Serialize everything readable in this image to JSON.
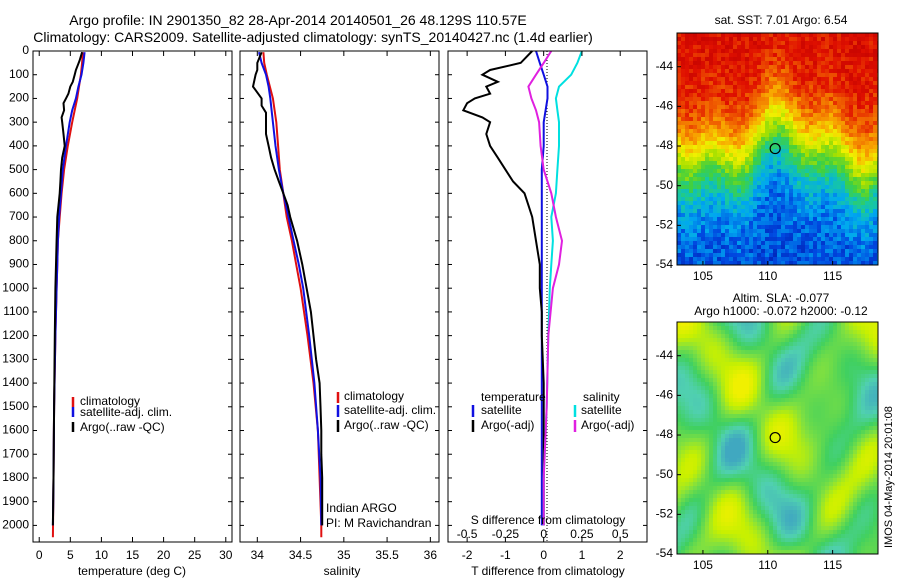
{
  "header": {
    "title_line1": "Argo profile: IN 2901350_82 28-Apr-2014 20140501_26 48.129S 110.57E",
    "title_line2": "Climatology: CARS2009. Satellite-adjusted climatology: synTS_20140427.nc (1.4d earlier)"
  },
  "colors": {
    "climatology": "#e01010",
    "satellite": "#1010e0",
    "argo": "#000000",
    "salinity_satellite": "#00e0e0",
    "salinity_argo": "#e020e0"
  },
  "chart_data": [
    {
      "id": "temperature",
      "type": "line",
      "xlabel": "temperature (deg C)",
      "xlim": [
        -1,
        31
      ],
      "xticks": [
        0,
        5,
        10,
        15,
        20,
        25,
        30
      ],
      "ylim": [
        2070,
        0
      ],
      "yticks": [
        0,
        100,
        200,
        300,
        400,
        500,
        600,
        700,
        800,
        900,
        1000,
        1100,
        1200,
        1300,
        1400,
        1500,
        1600,
        1700,
        1800,
        1900,
        2000
      ],
      "legend": {
        "placement": "lower-center",
        "entries": [
          "climatology",
          "satellite-adj. clim.",
          "Argo(..raw -QC)"
        ]
      },
      "series": [
        {
          "name": "climatology",
          "color": "#e01010",
          "depth": [
            5,
            50,
            100,
            150,
            200,
            250,
            300,
            400,
            500,
            600,
            700,
            800,
            900,
            1000,
            1200,
            1500,
            1800,
            2050
          ],
          "values": [
            7.0,
            6.9,
            6.7,
            6.4,
            6.1,
            5.7,
            5.3,
            4.6,
            4.0,
            3.6,
            3.3,
            3.0,
            2.9,
            2.8,
            2.6,
            2.4,
            2.3,
            2.2
          ]
        },
        {
          "name": "satellite-adj. clim.",
          "color": "#1010e0",
          "depth": [
            5,
            50,
            100,
            150,
            200,
            250,
            300,
            400,
            500,
            600,
            700,
            800,
            900,
            1000,
            1200,
            1500,
            1800,
            2000
          ],
          "values": [
            7.3,
            7.1,
            6.8,
            6.3,
            5.9,
            5.3,
            4.9,
            4.3,
            3.8,
            3.5,
            3.2,
            3.0,
            2.9,
            2.8,
            2.6,
            2.4,
            2.3,
            2.2
          ]
        },
        {
          "name": "Argo(..raw -QC)",
          "color": "#000000",
          "depth": [
            5,
            40,
            60,
            80,
            100,
            130,
            150,
            180,
            200,
            220,
            250,
            280,
            300,
            350,
            400,
            450,
            500,
            550,
            600,
            650,
            700,
            800,
            900,
            1000,
            1200,
            1500,
            1800,
            2000
          ],
          "values": [
            6.9,
            6.5,
            6.2,
            5.9,
            5.7,
            5.4,
            5.0,
            4.7,
            4.3,
            3.9,
            4.0,
            3.6,
            3.7,
            3.9,
            4.1,
            3.7,
            3.5,
            3.4,
            3.3,
            3.1,
            2.9,
            2.8,
            2.7,
            2.6,
            2.5,
            2.4,
            2.3,
            2.2
          ]
        }
      ]
    },
    {
      "id": "salinity",
      "type": "line",
      "xlabel": "salinity",
      "xlim": [
        33.8,
        36.1
      ],
      "xticks": [
        34,
        34.5,
        35,
        35.5,
        36
      ],
      "ylim": [
        2070,
        0
      ],
      "annotation": [
        "Indian ARGO",
        "PI: M Ravichandran"
      ],
      "legend": {
        "placement": "lower-center",
        "entries": [
          "climatology",
          "satellite-adj. clim.",
          "Argo(..raw -QC)"
        ]
      },
      "series": [
        {
          "name": "climatology",
          "color": "#e01010",
          "depth": [
            5,
            50,
            100,
            200,
            300,
            400,
            500,
            600,
            700,
            800,
            900,
            1000,
            1200,
            1400,
            1600,
            1800,
            2000,
            2050
          ],
          "values": [
            34.07,
            34.08,
            34.11,
            34.18,
            34.22,
            34.24,
            34.26,
            34.3,
            34.34,
            34.4,
            34.45,
            34.5,
            34.58,
            34.65,
            34.7,
            34.72,
            34.74,
            34.74
          ]
        },
        {
          "name": "satellite-adj. clim.",
          "color": "#1010e0",
          "depth": [
            5,
            50,
            100,
            150,
            200,
            300,
            400,
            500,
            600,
            700,
            800,
            900,
            1000,
            1200,
            1400,
            1600,
            1800,
            2000
          ],
          "values": [
            34.02,
            34.05,
            34.1,
            34.13,
            34.15,
            34.18,
            34.21,
            34.25,
            34.3,
            34.36,
            34.42,
            34.48,
            34.53,
            34.6,
            34.66,
            34.7,
            34.73,
            34.74
          ]
        },
        {
          "name": "Argo(..raw -QC)",
          "color": "#000000",
          "depth": [
            5,
            50,
            80,
            100,
            150,
            200,
            230,
            260,
            300,
            350,
            400,
            450,
            500,
            550,
            600,
            650,
            700,
            800,
            900,
            1000,
            1100,
            1200,
            1300,
            1400,
            1500,
            1600,
            1700,
            1800,
            1900,
            2000
          ],
          "values": [
            34.05,
            34.0,
            34.0,
            33.98,
            33.95,
            34.05,
            34.05,
            34.1,
            34.1,
            34.1,
            34.13,
            34.16,
            34.2,
            34.25,
            34.3,
            34.35,
            34.38,
            34.46,
            34.52,
            34.57,
            34.62,
            34.65,
            34.68,
            34.72,
            34.73,
            34.74,
            34.74,
            34.75,
            34.75,
            34.75
          ]
        }
      ]
    },
    {
      "id": "difference",
      "type": "line",
      "xlabel": "T difference from climatology",
      "xlabel_top": "S difference from climatology",
      "xlim": [
        -2.5,
        2.7
      ],
      "xticks": [
        -2,
        -1,
        0,
        1,
        2
      ],
      "xticks_salinity": [
        -0.5,
        -0.25,
        0,
        0.25,
        0.5
      ],
      "ylim": [
        2070,
        0
      ],
      "legend": {
        "placement": "lower-center",
        "headers": [
          "temperature",
          "salinity"
        ],
        "entries": [
          "satellite",
          "Argo(-adj)",
          "satellite",
          "Argo(-adj)"
        ]
      },
      "series": [
        {
          "name": "satellite",
          "group": "temperature",
          "color": "#1010e0",
          "depth": [
            0,
            50,
            100,
            150,
            200,
            250,
            300,
            400,
            500,
            600,
            700,
            800,
            900,
            1000,
            1200,
            1500,
            1800,
            2000
          ],
          "values": [
            -0.2,
            -0.1,
            0.0,
            0.1,
            0.1,
            0.05,
            0.0,
            0.0,
            -0.05,
            -0.05,
            -0.05,
            -0.05,
            -0.05,
            -0.05,
            -0.05,
            -0.05,
            -0.05,
            -0.05
          ]
        },
        {
          "name": "Argo(-adj)",
          "group": "temperature",
          "color": "#000000",
          "depth": [
            0,
            50,
            80,
            100,
            130,
            150,
            180,
            200,
            220,
            250,
            280,
            300,
            350,
            400,
            450,
            500,
            550,
            600,
            650,
            700,
            800,
            900,
            1000,
            1100,
            1200,
            1400,
            1600,
            1800,
            2000
          ],
          "values": [
            -0.3,
            -0.6,
            -1.4,
            -1.6,
            -1.2,
            -1.5,
            -1.4,
            -1.8,
            -2.0,
            -2.1,
            -1.6,
            -1.4,
            -1.5,
            -1.4,
            -1.2,
            -1.0,
            -0.8,
            -0.5,
            -0.4,
            -0.3,
            -0.2,
            -0.1,
            -0.1,
            -0.05,
            -0.05,
            0.0,
            0.0,
            0.0,
            0.0
          ]
        },
        {
          "name": "satellite",
          "group": "salinity",
          "color": "#00e0e0",
          "salinity_scale": true,
          "depth": [
            0,
            50,
            100,
            150,
            200,
            250,
            300,
            400,
            500,
            600,
            700,
            800,
            900,
            1000,
            1200,
            1500,
            1800,
            2000
          ],
          "values": [
            0.25,
            0.22,
            0.18,
            0.1,
            0.08,
            0.09,
            0.1,
            0.1,
            0.09,
            0.08,
            0.05,
            0.06,
            0.05,
            0.04,
            0.03,
            0.02,
            0.0,
            0.0
          ]
        },
        {
          "name": "Argo(-adj)",
          "group": "salinity",
          "color": "#e020e0",
          "salinity_scale": true,
          "depth": [
            0,
            50,
            100,
            150,
            200,
            250,
            300,
            400,
            500,
            600,
            700,
            800,
            900,
            1000,
            1200,
            1500,
            1800,
            2000
          ],
          "values": [
            0.05,
            0.0,
            -0.05,
            -0.1,
            -0.08,
            -0.05,
            -0.03,
            -0.02,
            0.0,
            0.05,
            0.08,
            0.12,
            0.1,
            0.06,
            0.03,
            0.02,
            0.0,
            0.0
          ]
        }
      ]
    },
    {
      "id": "sst_map",
      "type": "heatmap",
      "title": "sat. SST: 7.01  Argo: 6.54",
      "xlim": [
        103,
        118.5
      ],
      "ylim": [
        -54,
        -42.3
      ],
      "xticks": [
        105,
        110,
        115
      ],
      "yticks": [
        -54,
        -52,
        -50,
        -48,
        -46,
        -44
      ],
      "marker": {
        "lon": 110.57,
        "lat": -48.129
      },
      "colormap": [
        "#0010a0",
        "#0048e0",
        "#00a8f0",
        "#18c8a0",
        "#40d040",
        "#a8e000",
        "#f0f000",
        "#f8a800",
        "#f06000",
        "#e01000",
        "#c00000"
      ],
      "trend": {
        "north_value": 0.92,
        "south_value": 0.1,
        "mid_latitude": -48.8
      }
    },
    {
      "id": "sla_map",
      "type": "heatmap",
      "title_line1": "Altim. SLA: -0.077",
      "title_line2": "Argo h1000: -0.072  h2000: -0.12",
      "xlim": [
        103,
        118.5
      ],
      "ylim": [
        -54,
        -42.3
      ],
      "xticks": [
        105,
        110,
        115
      ],
      "yticks": [
        -54,
        -52,
        -50,
        -48,
        -46,
        -44
      ],
      "marker": {
        "lon": 110.57,
        "lat": -48.129
      },
      "colormap": [
        "#40a8c0",
        "#50d0b0",
        "#40d060",
        "#80e040",
        "#c8f000",
        "#f0f000"
      ]
    }
  ],
  "footer": {
    "imos_stamp": "IMOS 04-May-2014 20:01:08"
  }
}
